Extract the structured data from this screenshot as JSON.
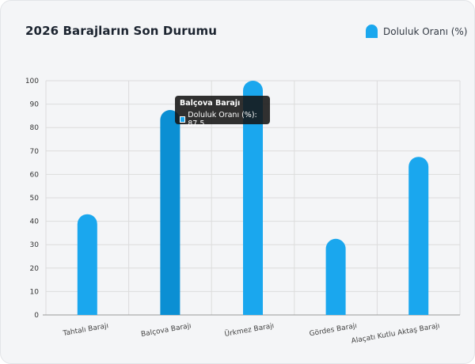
{
  "header": {
    "title": "2026 Barajların Son Durumu"
  },
  "colors": {
    "bar": "#1aa7ee",
    "bar_hover": "#0b8fd3",
    "grid": "#dcdcdc",
    "axis": "#9a9a9a"
  },
  "tooltip": {
    "title": "Balçova Barajı",
    "row_label": "Doluluk Oranı (%): 87,5"
  },
  "chart_data": {
    "type": "bar",
    "categories": [
      "Tahtalı Barajı",
      "Balçova Barajı",
      "Ürkmez Barajı",
      "Gördes Barajı",
      "Alaçatı Kutlu Aktaş Barajı"
    ],
    "series": [
      {
        "name": "Doluluk Oranı (%)",
        "values": [
          43,
          87.5,
          100,
          32.5,
          67.5
        ]
      }
    ],
    "ylim": [
      0,
      100
    ],
    "yticks": [
      0,
      10,
      20,
      30,
      40,
      50,
      60,
      70,
      80,
      90,
      100
    ],
    "grid": true,
    "legend": "top-right",
    "highlighted_index": 1
  }
}
